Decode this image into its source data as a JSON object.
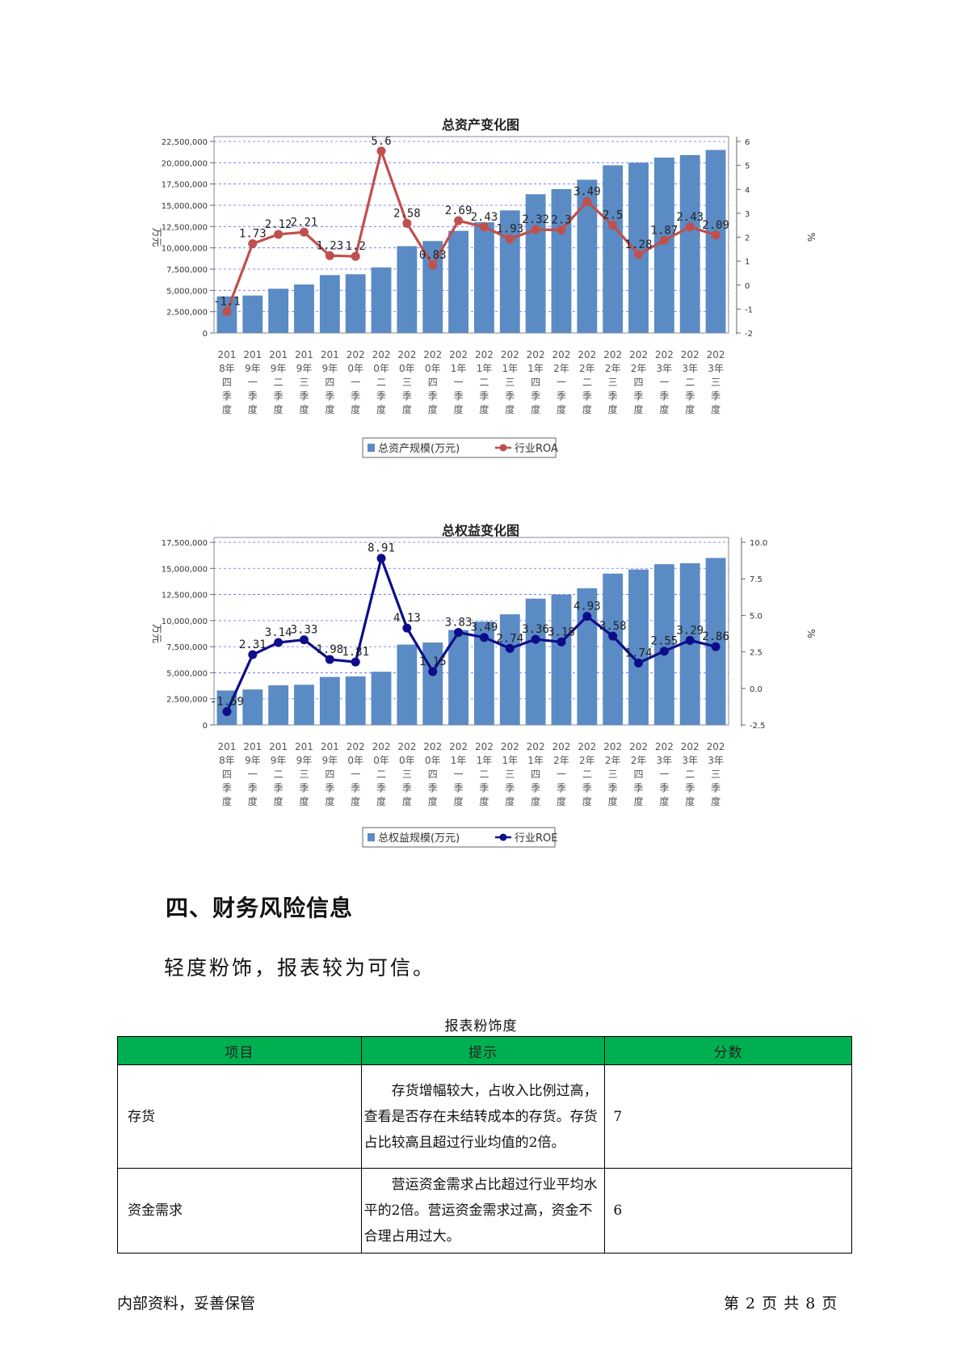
{
  "charts": [
    {
      "title": "总资产变化图",
      "left_axis_label": "万元",
      "right_axis_label": "%",
      "bar_legend": "总资产规模(万元)",
      "line_legend": "行业ROA"
    },
    {
      "title": "总权益变化图",
      "left_axis_label": "万元",
      "right_axis_label": "%",
      "bar_legend": "总权益规模(万元)",
      "line_legend": "行业ROE"
    }
  ],
  "chart_data": [
    {
      "type": "bar",
      "title": "总资产变化图",
      "categories": [
        [
          "201",
          "8年",
          "四",
          "季",
          "度"
        ],
        [
          "201",
          "9年",
          "一",
          "季",
          "度"
        ],
        [
          "201",
          "9年",
          "二",
          "季",
          "度"
        ],
        [
          "201",
          "9年",
          "三",
          "季",
          "度"
        ],
        [
          "201",
          "9年",
          "四",
          "季",
          "度"
        ],
        [
          "202",
          "0年",
          "一",
          "季",
          "度"
        ],
        [
          "202",
          "0年",
          "二",
          "季",
          "度"
        ],
        [
          "202",
          "0年",
          "三",
          "季",
          "度"
        ],
        [
          "202",
          "0年",
          "四",
          "季",
          "度"
        ],
        [
          "202",
          "1年",
          "一",
          "季",
          "度"
        ],
        [
          "202",
          "1年",
          "二",
          "季",
          "度"
        ],
        [
          "202",
          "1年",
          "三",
          "季",
          "度"
        ],
        [
          "202",
          "1年",
          "四",
          "季",
          "度"
        ],
        [
          "202",
          "2年",
          "一",
          "季",
          "度"
        ],
        [
          "202",
          "2年",
          "二",
          "季",
          "度"
        ],
        [
          "202",
          "2年",
          "三",
          "季",
          "度"
        ],
        [
          "202",
          "2年",
          "四",
          "季",
          "度"
        ],
        [
          "202",
          "3年",
          "一",
          "季",
          "度"
        ],
        [
          "202",
          "3年",
          "二",
          "季",
          "度"
        ],
        [
          "202",
          "3年",
          "三",
          "季",
          "度"
        ]
      ],
      "series": [
        {
          "name": "总资产规模(万元)",
          "type": "bar",
          "axis": "left",
          "color": "#5b8bc4",
          "values": [
            4300000,
            4400000,
            5200000,
            5700000,
            6800000,
            6900000,
            7700000,
            10200000,
            10800000,
            12000000,
            13000000,
            14400000,
            16300000,
            16900000,
            18000000,
            19700000,
            20000000,
            20600000,
            20900000,
            21500000
          ]
        },
        {
          "name": "行业ROA",
          "type": "line",
          "axis": "right",
          "color": "#c0504d",
          "values": [
            -1.1,
            1.73,
            2.12,
            2.21,
            1.23,
            1.2,
            5.6,
            2.58,
            0.83,
            2.69,
            2.43,
            1.93,
            2.32,
            2.3,
            3.49,
            2.5,
            1.28,
            1.87,
            2.43,
            2.09
          ],
          "labels": [
            "-1.1",
            "1.73",
            "2.12",
            "2.21",
            "1.23",
            "1.2",
            "5.6",
            "2.58",
            "0.83",
            "2.69",
            "2.43",
            "1.93",
            "2.32",
            "2.3",
            "3.49",
            "2.5",
            "1.28",
            "1.87",
            "2.43",
            "2.09"
          ]
        }
      ],
      "left_ticks": [
        "22,500,000",
        "20,000,000",
        "17,500,000",
        "15,000,000",
        "12,500,000",
        "10,000,000",
        "7,500,000",
        "5,000,000",
        "2,500,000",
        "0"
      ],
      "right_ticks": [
        "6",
        "5",
        "4",
        "3",
        "2",
        "1",
        "0",
        "-1",
        "-2"
      ],
      "ylim_left": [
        0,
        22500000
      ],
      "ylim_right": [
        -2,
        6
      ],
      "grid": true,
      "legend_position": "bottom"
    },
    {
      "type": "bar",
      "title": "总权益变化图",
      "categories": [
        [
          "201",
          "8年",
          "四",
          "季",
          "度"
        ],
        [
          "201",
          "9年",
          "一",
          "季",
          "度"
        ],
        [
          "201",
          "9年",
          "二",
          "季",
          "度"
        ],
        [
          "201",
          "9年",
          "三",
          "季",
          "度"
        ],
        [
          "201",
          "9年",
          "四",
          "季",
          "度"
        ],
        [
          "202",
          "0年",
          "一",
          "季",
          "度"
        ],
        [
          "202",
          "0年",
          "二",
          "季",
          "度"
        ],
        [
          "202",
          "0年",
          "三",
          "季",
          "度"
        ],
        [
          "202",
          "0年",
          "四",
          "季",
          "度"
        ],
        [
          "202",
          "1年",
          "一",
          "季",
          "度"
        ],
        [
          "202",
          "1年",
          "二",
          "季",
          "度"
        ],
        [
          "202",
          "1年",
          "三",
          "季",
          "度"
        ],
        [
          "202",
          "1年",
          "四",
          "季",
          "度"
        ],
        [
          "202",
          "2年",
          "一",
          "季",
          "度"
        ],
        [
          "202",
          "2年",
          "二",
          "季",
          "度"
        ],
        [
          "202",
          "2年",
          "三",
          "季",
          "度"
        ],
        [
          "202",
          "2年",
          "四",
          "季",
          "度"
        ],
        [
          "202",
          "3年",
          "一",
          "季",
          "度"
        ],
        [
          "202",
          "3年",
          "二",
          "季",
          "度"
        ],
        [
          "202",
          "3年",
          "三",
          "季",
          "度"
        ]
      ],
      "series": [
        {
          "name": "总权益规模(万元)",
          "type": "bar",
          "axis": "left",
          "color": "#5b8bc4",
          "values": [
            3300000,
            3400000,
            3800000,
            3850000,
            4600000,
            4650000,
            5100000,
            7700000,
            7900000,
            9100000,
            9900000,
            10600000,
            12100000,
            12500000,
            13100000,
            14500000,
            14900000,
            15400000,
            15500000,
            16000000
          ]
        },
        {
          "name": "行业ROE",
          "type": "line",
          "axis": "right",
          "color": "#0d0d8a",
          "values": [
            -1.59,
            2.31,
            3.14,
            3.33,
            1.98,
            1.81,
            8.91,
            4.13,
            1.15,
            3.83,
            3.49,
            2.74,
            3.36,
            3.18,
            4.93,
            3.58,
            1.74,
            2.55,
            3.29,
            2.86
          ],
          "labels": [
            "-1.59",
            "2.31",
            "3.14",
            "3.33",
            "1.98",
            "1.81",
            "8.91",
            "4.13",
            "1.15",
            "3.83",
            "3.49",
            "2.74",
            "3.36",
            "3.18",
            "4.93",
            "3.58",
            "1.74",
            "2.55",
            "3.29",
            "2.86"
          ]
        }
      ],
      "left_ticks": [
        "17,500,000",
        "15,000,000",
        "12,500,000",
        "10,000,000",
        "7,500,000",
        "5,000,000",
        "2,500,000",
        "0"
      ],
      "right_ticks": [
        "10.0",
        "7.5",
        "5.0",
        "2.5",
        "0.0",
        "-2.5"
      ],
      "ylim_left": [
        0,
        17500000
      ],
      "ylim_right": [
        -2.5,
        10
      ],
      "grid": true,
      "legend_position": "bottom"
    }
  ],
  "section": {
    "heading": "四、财务风险信息",
    "summary": "轻度粉饰，报表较为可信。"
  },
  "table": {
    "caption": "报表粉饰度",
    "headers": [
      "项目",
      "提示",
      "分数"
    ],
    "rows": [
      {
        "item": "存货",
        "hint": "存货增幅较大，占收入比例过高，查看是否存在未结转成本的存货。存货占比较高且超过行业均值的2倍。",
        "score": "7"
      },
      {
        "item": "资金需求",
        "hint": "营运资金需求占比超过行业平均水平的2倍。营运资金需求过高，资金不合理占用过大。",
        "score": "6"
      }
    ]
  },
  "footer": {
    "left": "内部资料，妥善保管",
    "right": "第 2 页  共 8 页"
  }
}
